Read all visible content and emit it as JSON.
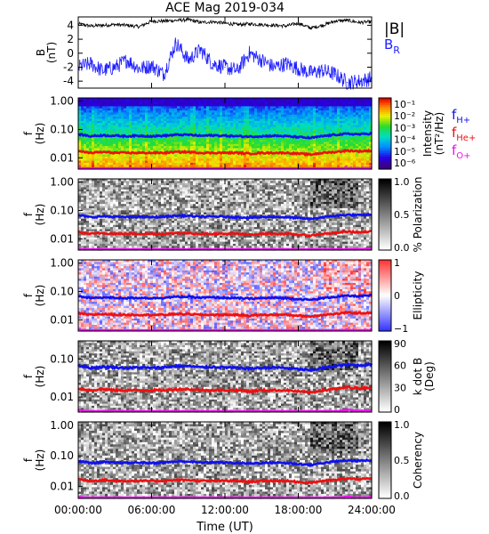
{
  "title": "ACE Mag 2019-034",
  "xlabel": "Time (UT)",
  "colors": {
    "B_total": "#000000",
    "B_R": "#1f1fff",
    "f_H": "#1010ee",
    "f_He": "#ee1010",
    "f_O": "#ee10ee"
  },
  "chart_data": [
    {
      "type": "line",
      "ylabel": "B\n(nT)",
      "ylim": [
        -5,
        5.2
      ],
      "yticks": [
        4,
        2,
        0,
        -2,
        -4
      ],
      "ytick_labels": [
        "4",
        "2",
        "0",
        "-2",
        "-4"
      ],
      "x_ticks": [
        "00:00:00",
        "06:00:00",
        "12:00:00",
        "18:00:00",
        "24:00:00"
      ],
      "x_range_hours": [
        0,
        24
      ],
      "legend": [
        "|B|",
        "B_R"
      ],
      "legend_placement": "right",
      "series": [
        {
          "name": "|B|",
          "key": "B_total",
          "x": [
            0,
            1,
            2,
            3,
            4,
            5,
            6,
            7,
            8,
            9,
            10,
            11,
            12,
            13,
            14,
            15,
            16,
            17,
            18,
            19,
            20,
            21,
            22,
            23,
            24
          ],
          "y": [
            4.2,
            3.9,
            4.0,
            4.1,
            4.0,
            3.8,
            4.6,
            4.6,
            4.7,
            4.8,
            4.4,
            4.5,
            4.3,
            4.1,
            4.2,
            4.1,
            4.0,
            3.9,
            4.3,
            3.6,
            4.0,
            4.6,
            4.7,
            4.4,
            4.5
          ]
        },
        {
          "name": "B_R",
          "key": "B_R",
          "x": [
            0,
            1,
            2,
            3,
            4,
            5,
            6,
            7,
            8,
            9,
            10,
            11,
            12,
            13,
            14,
            15,
            16,
            17,
            18,
            19,
            20,
            21,
            22,
            23,
            24
          ],
          "y": [
            -2.0,
            -1.5,
            -2.5,
            -2.0,
            -1.0,
            -2.2,
            -1.8,
            -3.0,
            1.5,
            -1.0,
            0.5,
            -1.5,
            -2.0,
            -2.5,
            0.0,
            -1.0,
            -2.0,
            -1.5,
            -2.2,
            -2.8,
            -2.5,
            -3.0,
            -4.2,
            -4.0,
            -3.6
          ]
        }
      ]
    },
    {
      "type": "heatmap",
      "ylabel": "f\n(Hz)",
      "yscale": "log",
      "ylim": [
        0.004,
        1.3
      ],
      "yticks": [
        1.0,
        0.1,
        0.01
      ],
      "ytick_labels": [
        "1.00",
        "0.10",
        "0.01"
      ],
      "x_ticks": [
        "00:00:00",
        "06:00:00",
        "12:00:00",
        "18:00:00",
        "24:00:00"
      ],
      "x_tick_labels_visible": false,
      "colormap": "rainbow",
      "colorbar": {
        "label": "Intensity\n(nT²/Hz)",
        "ticks": [
          "10⁻¹",
          "10⁻²",
          "10⁻³",
          "10⁻⁴",
          "10⁻⁵",
          "10⁻⁶"
        ],
        "scale": "log",
        "range": [
          1e-07,
          1
        ]
      },
      "legend": [
        "f_H+",
        "f_He+",
        "f_O+"
      ]
    },
    {
      "type": "heatmap",
      "ylabel": "f\n(Hz)",
      "yscale": "log",
      "ylim": [
        0.004,
        1.3
      ],
      "yticks": [
        1.0,
        0.1,
        0.01
      ],
      "ytick_labels": [
        "1.00",
        "0.10",
        "0.01"
      ],
      "x_ticks": [
        "00:00:00",
        "06:00:00",
        "12:00:00",
        "18:00:00",
        "24:00:00"
      ],
      "x_tick_labels_visible": false,
      "colormap": "gray",
      "colorbar": {
        "label": "% Polarization",
        "ticks": [
          "1.0",
          "0.5",
          "0.0"
        ],
        "range": [
          0,
          1
        ]
      }
    },
    {
      "type": "heatmap",
      "ylabel": "f\n(Hz)",
      "yscale": "log",
      "ylim": [
        0.004,
        1.3
      ],
      "yticks": [
        1.0,
        0.1,
        0.01
      ],
      "ytick_labels": [
        "1.00",
        "0.10",
        "0.01"
      ],
      "x_ticks": [
        "00:00:00",
        "06:00:00",
        "12:00:00",
        "18:00:00",
        "24:00:00"
      ],
      "x_tick_labels_visible": false,
      "colormap": "blue-white-red",
      "colorbar": {
        "label": "Ellipticity",
        "ticks": [
          "1",
          "0",
          "−1"
        ],
        "range": [
          -1,
          1
        ]
      }
    },
    {
      "type": "heatmap",
      "ylabel": "f\n(Hz)",
      "yscale": "log",
      "ylim": [
        0.004,
        0.3
      ],
      "yticks": [
        0.1,
        0.01
      ],
      "ytick_labels": [
        "0.10",
        "0.01"
      ],
      "x_ticks": [
        "00:00:00",
        "06:00:00",
        "12:00:00",
        "18:00:00",
        "24:00:00"
      ],
      "x_tick_labels_visible": false,
      "colormap": "gray",
      "colorbar": {
        "label": "k dot B\n(Deg)",
        "ticks": [
          "90",
          "60",
          "30",
          "0"
        ],
        "range": [
          0,
          90
        ]
      }
    },
    {
      "type": "heatmap",
      "ylabel": "f\n(Hz)",
      "yscale": "log",
      "ylim": [
        0.004,
        1.3
      ],
      "yticks": [
        1.0,
        0.1,
        0.01
      ],
      "ytick_labels": [
        "1.00",
        "0.10",
        "0.01"
      ],
      "x_ticks": [
        "00:00:00",
        "06:00:00",
        "12:00:00",
        "18:00:00",
        "24:00:00"
      ],
      "x_tick_labels_visible": true,
      "colormap": "gray",
      "colorbar": {
        "label": "Coherency",
        "ticks": [
          "1.0",
          "0.5",
          "0.0"
        ],
        "range": [
          0,
          1
        ]
      }
    }
  ],
  "gyro_lines": {
    "f_H": [
      0.068,
      0.058,
      0.062,
      0.06,
      0.058,
      0.06,
      0.058,
      0.06,
      0.065,
      0.065,
      0.06,
      0.062,
      0.06,
      0.058,
      0.056,
      0.058,
      0.06,
      0.058,
      0.054,
      0.05,
      0.058,
      0.065,
      0.07,
      0.068,
      0.072
    ],
    "f_He": [
      0.017,
      0.015,
      0.016,
      0.015,
      0.015,
      0.015,
      0.015,
      0.015,
      0.016,
      0.016,
      0.015,
      0.015,
      0.015,
      0.015,
      0.014,
      0.015,
      0.015,
      0.015,
      0.014,
      0.013,
      0.015,
      0.016,
      0.018,
      0.017,
      0.018
    ],
    "f_O": [
      0.0045,
      0.0038,
      0.004,
      0.0038,
      0.0038,
      0.0038,
      0.0038,
      0.0038,
      0.004,
      0.004,
      0.0038,
      0.004,
      0.0038,
      0.0038,
      0.0036,
      0.0038,
      0.0038,
      0.0037,
      0.0035,
      0.0033,
      0.0037,
      0.004,
      0.0045,
      0.0042,
      0.0045
    ]
  },
  "legend_labels": {
    "B_total": "|B|",
    "B_R_main": "B",
    "B_R_sub": "R",
    "f_main": "f",
    "H_sub": "H+",
    "He_sub": "He+",
    "O_sub": "O+"
  }
}
